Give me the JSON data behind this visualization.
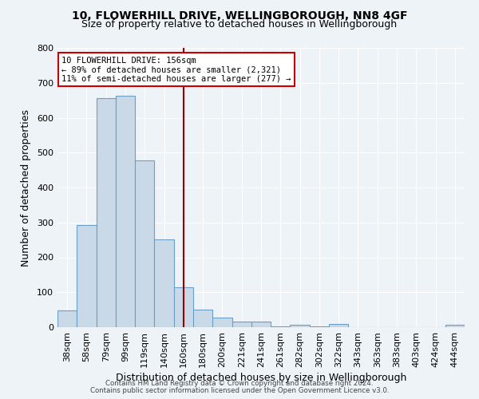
{
  "title1": "10, FLOWERHILL DRIVE, WELLINGBOROUGH, NN8 4GF",
  "title2": "Size of property relative to detached houses in Wellingborough",
  "xlabel": "Distribution of detached houses by size in Wellingborough",
  "ylabel": "Number of detached properties",
  "categories": [
    "38sqm",
    "58sqm",
    "79sqm",
    "99sqm",
    "119sqm",
    "140sqm",
    "160sqm",
    "180sqm",
    "200sqm",
    "221sqm",
    "241sqm",
    "261sqm",
    "282sqm",
    "302sqm",
    "322sqm",
    "343sqm",
    "363sqm",
    "383sqm",
    "403sqm",
    "424sqm",
    "444sqm"
  ],
  "values": [
    47,
    293,
    657,
    663,
    477,
    252,
    115,
    50,
    28,
    17,
    15,
    3,
    8,
    3,
    9,
    1,
    1,
    0,
    1,
    0,
    8
  ],
  "bar_color": "#c9d9e8",
  "bar_edge_color": "#6aa0c7",
  "vline_x": 6,
  "vline_color": "#990000",
  "annotation_text": "10 FLOWERHILL DRIVE: 156sqm\n← 89% of detached houses are smaller (2,321)\n11% of semi-detached houses are larger (277) →",
  "annotation_box_color": "#ffffff",
  "annotation_box_edge_color": "#cc0000",
  "ylim": [
    0,
    800
  ],
  "yticks": [
    0,
    100,
    200,
    300,
    400,
    500,
    600,
    700,
    800
  ],
  "footer1": "Contains HM Land Registry data © Crown copyright and database right 2024.",
  "footer2": "Contains public sector information licensed under the Open Government Licence v3.0.",
  "bg_color": "#eef3f8",
  "plot_bg_color": "#eef3f8",
  "grid_color": "#ffffff",
  "title1_fontsize": 10,
  "title2_fontsize": 9
}
